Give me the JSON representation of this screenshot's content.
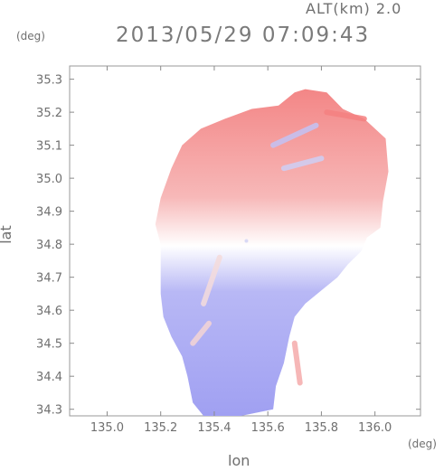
{
  "header": {
    "alt_label": "ALT(km) 2.0",
    "timestamp": "2013/05/29 07:09:43"
  },
  "chart_data": {
    "type": "heatmap",
    "title": "2013/05/29 07:09:43",
    "subtitle": "ALT(km) 2.0",
    "xlabel": "lon",
    "ylabel": "lat",
    "xunit": "(deg)",
    "yunit": "(deg)",
    "xlim": [
      134.86,
      136.17
    ],
    "ylim": [
      34.28,
      35.34
    ],
    "xticks": [
      "135.0",
      "135.2",
      "135.4",
      "135.6",
      "135.8",
      "136.0"
    ],
    "yticks": [
      "34.3",
      "34.4",
      "34.5",
      "34.6",
      "34.7",
      "34.8",
      "34.9",
      "35.0",
      "35.1",
      "35.2",
      "35.3"
    ],
    "colormap": {
      "positive": "#f06a6a",
      "zero": "#ffffff",
      "negative": "#7b7bf0"
    },
    "center": {
      "lon": 135.52,
      "lat": 34.81
    },
    "coverage_outline": [
      [
        135.74,
        35.27
      ],
      [
        135.82,
        35.26
      ],
      [
        135.88,
        35.21
      ],
      [
        135.96,
        35.18
      ],
      [
        136.04,
        35.12
      ],
      [
        136.05,
        35.02
      ],
      [
        136.03,
        34.93
      ],
      [
        136.02,
        34.85
      ],
      [
        135.97,
        34.82
      ],
      [
        135.95,
        34.78
      ],
      [
        135.9,
        34.74
      ],
      [
        135.86,
        34.7
      ],
      [
        135.8,
        34.66
      ],
      [
        135.74,
        34.62
      ],
      [
        135.7,
        34.58
      ],
      [
        135.68,
        34.52
      ],
      [
        135.66,
        34.44
      ],
      [
        135.63,
        34.37
      ],
      [
        135.62,
        34.3
      ],
      [
        135.5,
        34.28
      ],
      [
        135.36,
        34.28
      ],
      [
        135.32,
        34.32
      ],
      [
        135.3,
        34.4
      ],
      [
        135.28,
        34.46
      ],
      [
        135.24,
        34.52
      ],
      [
        135.21,
        34.58
      ],
      [
        135.2,
        34.65
      ],
      [
        135.2,
        34.73
      ],
      [
        135.2,
        34.8
      ],
      [
        135.18,
        34.86
      ],
      [
        135.2,
        34.94
      ],
      [
        135.24,
        35.03
      ],
      [
        135.28,
        35.1
      ],
      [
        135.35,
        35.15
      ],
      [
        135.44,
        35.18
      ],
      [
        135.54,
        35.21
      ],
      [
        135.64,
        35.22
      ],
      [
        135.7,
        35.26
      ]
    ],
    "streaks": [
      {
        "lon1": 135.62,
        "lat1": 35.1,
        "lon2": 135.78,
        "lat2": 35.16,
        "value": -0.5
      },
      {
        "lon1": 135.66,
        "lat1": 35.03,
        "lon2": 135.8,
        "lat2": 35.06,
        "value": -0.4
      },
      {
        "lon1": 135.42,
        "lat1": 34.76,
        "lon2": 135.36,
        "lat2": 34.62,
        "value": 0.25
      },
      {
        "lon1": 135.38,
        "lat1": 34.56,
        "lon2": 135.32,
        "lat2": 34.5,
        "value": 0.3
      },
      {
        "lon1": 135.7,
        "lat1": 34.5,
        "lon2": 135.72,
        "lat2": 34.38,
        "value": 0.6
      },
      {
        "lon1": 135.82,
        "lat1": 35.2,
        "lon2": 135.96,
        "lat2": 35.18,
        "value": 0.9
      }
    ]
  }
}
